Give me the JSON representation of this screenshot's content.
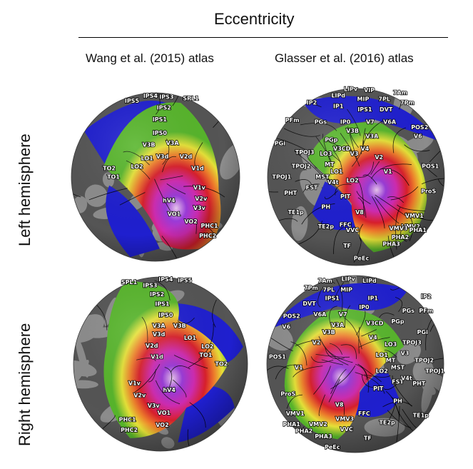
{
  "figure_title": "Eccentricity",
  "columns": [
    "Wang et al. (2015) atlas",
    "Glasser et al. (2016) atlas"
  ],
  "rows": [
    "Left hemisphere",
    "Right hemisphere"
  ],
  "colors": {
    "curv_dark": "#555555",
    "curv_light": "#8c8c8c",
    "peripheral": "#1f1fcf",
    "green": "#57b52b",
    "yellow": "#e6e238",
    "orange": "#ee7d2b",
    "red": "#d81f2b",
    "magenta": "#cf2bb1",
    "purple": "#9a3bd8",
    "foveal": "#e9c6ee"
  },
  "panels": {
    "wang_left": {
      "labels": [
        "IPS5",
        "IPS4",
        "IPS3",
        "SPL1",
        "IPS2",
        "IPS1",
        "IPS0",
        "V3B",
        "V3A",
        "V3d",
        "LO1",
        "V2d",
        "LO2",
        "TO2",
        "TO1",
        "V1d",
        "V1v",
        "hV4",
        "V2v",
        "V3v",
        "VO1",
        "VO2",
        "PHC1",
        "PHC2"
      ]
    },
    "glasser_left": {
      "labels": [
        "LIPv",
        "VIP",
        "7Am",
        "LIPd",
        "MIP",
        "7PL",
        "7Pm",
        "IP2",
        "IP1",
        "IPS1",
        "DVT",
        "PFm",
        "PGs",
        "IP0",
        "V7",
        "V6A",
        "POS2",
        "V6",
        "V3B",
        "V3A",
        "PGi",
        "PGp",
        "V3CD",
        "V4",
        "V3",
        "TPOJ3",
        "LO3",
        "V2",
        "TPOJ2",
        "MT",
        "LO1",
        "POS1",
        "TPOJ1",
        "MST",
        "V4t",
        "LO2",
        "V1",
        "PHT",
        "FST",
        "PIT",
        "ProS",
        "PH",
        "TE1p",
        "V8",
        "VMV1",
        "FFC",
        "VMV2",
        "VMV3",
        "PHA1",
        "TE2p",
        "VVC",
        "PHA2",
        "PHA3",
        "TF",
        "PeEc"
      ]
    },
    "wang_right": {
      "labels": [
        "IPS4",
        "IPS5",
        "SPL1",
        "IPS3",
        "IPS2",
        "IPS1",
        "IPS0",
        "V3A",
        "V3B",
        "V3d",
        "LO1",
        "V2d",
        "LO2",
        "TO1",
        "TO2",
        "V1d",
        "V1v",
        "V2v",
        "hV4",
        "V3v",
        "VO1",
        "PHC1",
        "VO2",
        "PHC2"
      ]
    },
    "glasser_right": {
      "labels": [
        "7Am",
        "LIPv",
        "LIPd",
        "7Pm",
        "7PL",
        "MIP",
        "IP2",
        "IPS1",
        "IP1",
        "DVT",
        "IP0",
        "PGs",
        "PFm",
        "POS2",
        "V6A",
        "V7",
        "PGp",
        "V6",
        "V3A",
        "V3CD",
        "PGi",
        "V3B",
        "V4",
        "LO3",
        "TPOJ3",
        "V2",
        "LO1",
        "MT",
        "TPOJ2",
        "POS1",
        "V3",
        "MST",
        "TPOJ1",
        "V1",
        "LO2",
        "FST",
        "PHT",
        "PIT",
        "V4t",
        "ProS",
        "PH",
        "V8",
        "TE1p",
        "VMV1",
        "FFC",
        "TE2p",
        "PHA1",
        "VMV2",
        "VMV3",
        "PHA2",
        "VVC",
        "PHA3",
        "TF",
        "PeEc"
      ]
    }
  }
}
